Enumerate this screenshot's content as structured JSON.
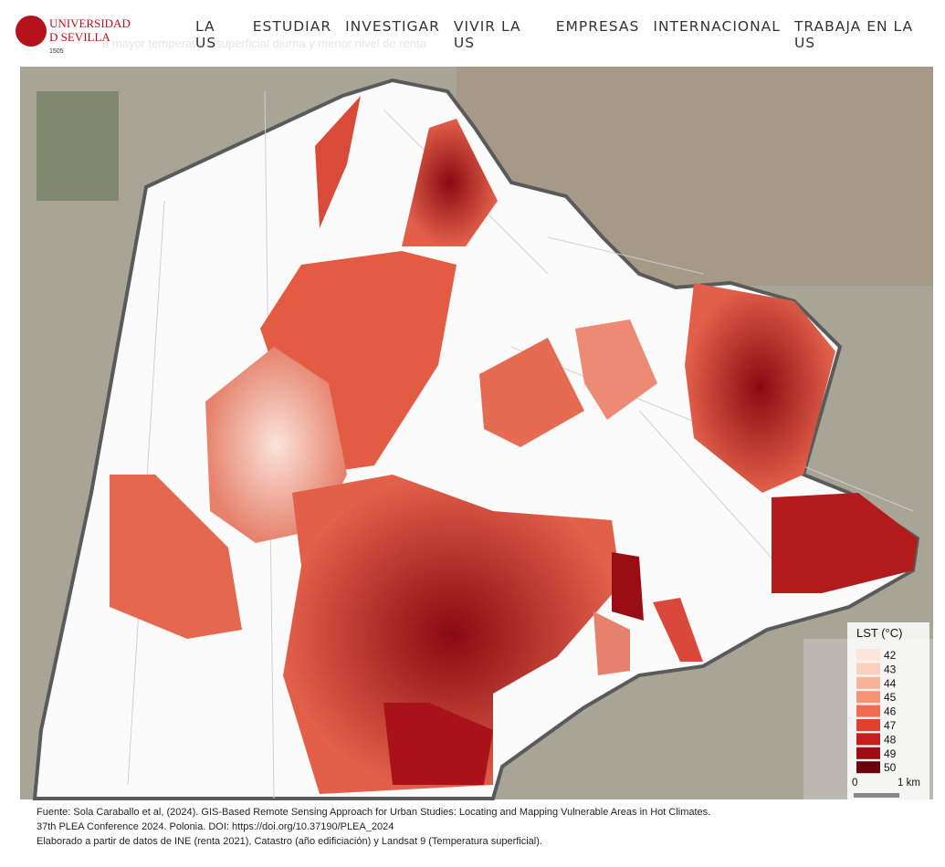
{
  "header": {
    "logo": {
      "line1": "UNIVERSIDAD",
      "line2": "D SEVILLA",
      "year": "1505"
    },
    "faded_subtitle": "a mayor temperatura superficial diurna y menor nivel de renta",
    "nav": [
      "LA US",
      "ESTUDIAR",
      "INVESTIGAR",
      "VIVIR LA US",
      "EMPRESAS",
      "INTERNACIONAL",
      "TRABAJA EN LA US"
    ]
  },
  "legend": {
    "title": "LST (°C)",
    "items": [
      {
        "label": 42,
        "color": "#fde5da"
      },
      {
        "label": 43,
        "color": "#fbd0bd"
      },
      {
        "label": 44,
        "color": "#f9b399"
      },
      {
        "label": 45,
        "color": "#f69275"
      },
      {
        "label": 46,
        "color": "#f06b50"
      },
      {
        "label": 47,
        "color": "#e2402f"
      },
      {
        "label": 48,
        "color": "#c6201d"
      },
      {
        "label": 49,
        "color": "#9e0d14"
      },
      {
        "label": 50,
        "color": "#6a000c"
      }
    ],
    "scale": {
      "start": "0",
      "end": "1 km"
    }
  },
  "footer": {
    "lines": [
      "Fuente: Sola Caraballo et al,  (2024). GIS-Based Remote Sensing Approach for Urban Studies: Locating and Mapping Vulnerable Areas in Hot Climates.",
      "37th PLEA Conference 2024. Polonia. DOI: https://doi.org/10.37190/PLEA_2024",
      "Elaborado a partir de datos de INE (renta 2021), Catastro (año edificiación) y Landsat 9 (Temperatura superficial)."
    ]
  }
}
